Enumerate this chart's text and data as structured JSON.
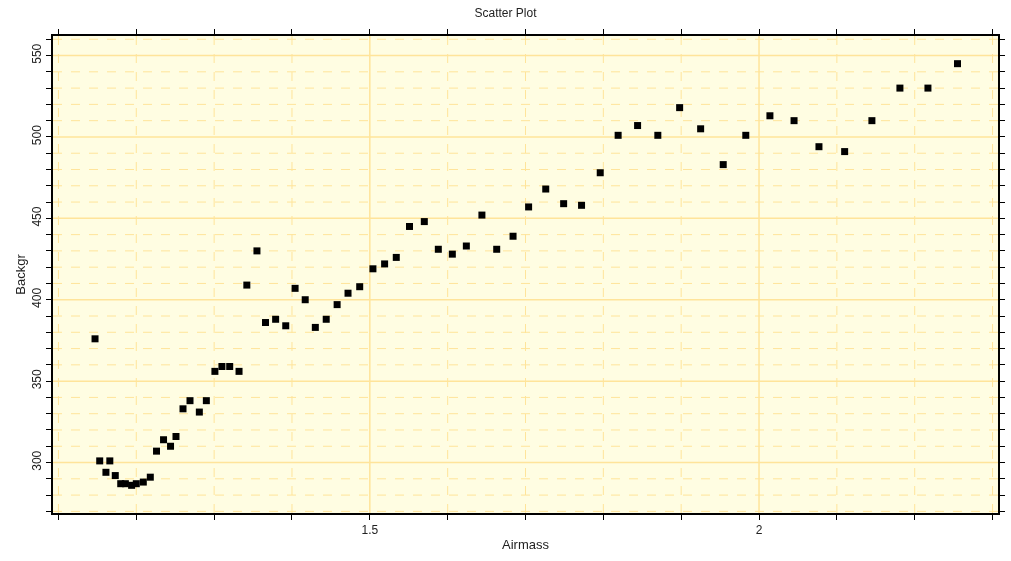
{
  "chart_data": {
    "type": "scatter",
    "title": "Scatter Plot",
    "xlabel": "Airmass",
    "ylabel": "Backgr",
    "marker": "square",
    "grid": true,
    "xlim": [
      1.093,
      2.307
    ],
    "ylim": [
      269,
      562
    ],
    "xticks": [
      {
        "value": 1.1,
        "label": null
      },
      {
        "value": 1.2,
        "label": null
      },
      {
        "value": 1.3,
        "label": null
      },
      {
        "value": 1.4,
        "label": null
      },
      1.5,
      {
        "value": 1.6,
        "label": null
      },
      {
        "value": 1.7,
        "label": null
      },
      {
        "value": 1.8,
        "label": null
      },
      {
        "value": 1.9,
        "label": null
      },
      2,
      {
        "value": 2.1,
        "label": null
      },
      {
        "value": 2.2,
        "label": null
      },
      {
        "value": 2.3,
        "label": null
      }
    ],
    "yticks": [
      {
        "value": 270,
        "label": null
      },
      {
        "value": 280,
        "label": null
      },
      {
        "value": 290,
        "label": null
      },
      300,
      {
        "value": 310,
        "label": null
      },
      {
        "value": 320,
        "label": null
      },
      {
        "value": 330,
        "label": null
      },
      {
        "value": 340,
        "label": null
      },
      350,
      {
        "value": 360,
        "label": null
      },
      {
        "value": 370,
        "label": null
      },
      {
        "value": 380,
        "label": null
      },
      {
        "value": 390,
        "label": null
      },
      400,
      {
        "value": 410,
        "label": null
      },
      {
        "value": 420,
        "label": null
      },
      {
        "value": 430,
        "label": null
      },
      {
        "value": 440,
        "label": null
      },
      450,
      {
        "value": 460,
        "label": null
      },
      {
        "value": 470,
        "label": null
      },
      {
        "value": 480,
        "label": null
      },
      {
        "value": 490,
        "label": null
      },
      500,
      {
        "value": 510,
        "label": null
      },
      {
        "value": 520,
        "label": null
      },
      {
        "value": 530,
        "label": null
      },
      {
        "value": 540,
        "label": null
      },
      550,
      {
        "value": 560,
        "label": null
      }
    ],
    "series": [
      {
        "color": "#000000",
        "x": [
          1.147,
          1.153,
          1.161,
          1.166,
          1.173,
          1.18,
          1.186,
          1.194,
          1.2,
          1.209,
          1.218,
          1.226,
          1.235,
          1.244,
          1.251,
          1.26,
          1.269,
          1.281,
          1.29,
          1.301,
          1.31,
          1.32,
          1.332,
          1.342,
          1.355,
          1.366,
          1.379,
          1.392,
          1.404,
          1.417,
          1.43,
          1.444,
          1.458,
          1.472,
          1.487,
          1.504,
          1.519,
          1.534,
          1.551,
          1.57,
          1.588,
          1.606,
          1.624,
          1.644,
          1.663,
          1.684,
          1.704,
          1.726,
          1.749,
          1.772,
          1.796,
          1.819,
          1.844,
          1.87,
          1.898,
          1.925,
          1.954,
          1.983,
          2.014,
          2.045,
          2.077,
          2.11,
          2.145,
          2.181,
          2.217,
          2.255
        ],
        "values": [
          376,
          301,
          294,
          301,
          292,
          287,
          287,
          286,
          287,
          288,
          291,
          307,
          314,
          310,
          316,
          333,
          338,
          331,
          338,
          356,
          359,
          359,
          356,
          409,
          430,
          386,
          388,
          384,
          407,
          400,
          383,
          388,
          397,
          404,
          408,
          419,
          422,
          426,
          445,
          448,
          431,
          428,
          433,
          452,
          431,
          439,
          457,
          468,
          459,
          458,
          478,
          501,
          507,
          501,
          518,
          505,
          483,
          501,
          513,
          510,
          494,
          491,
          510,
          530,
          530,
          545
        ]
      }
    ]
  }
}
